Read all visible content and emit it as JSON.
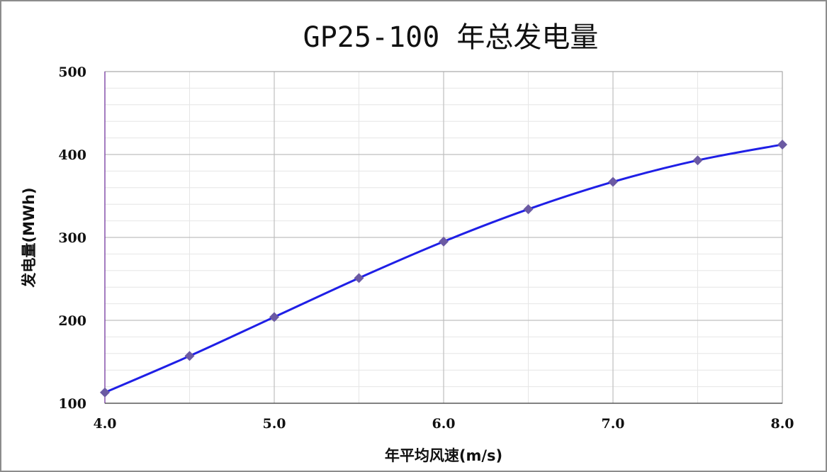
{
  "chart_data": {
    "type": "line",
    "title": "GP25-100 年总发电量",
    "xlabel": "年平均风速(m/s)",
    "ylabel": "发电量(MWh)",
    "xlim": [
      4.0,
      8.0
    ],
    "ylim": [
      100,
      500
    ],
    "x_ticks": [
      "4.0",
      "5.0",
      "6.0",
      "7.0",
      "8.0"
    ],
    "y_ticks": [
      "100",
      "200",
      "300",
      "400",
      "500"
    ],
    "grid": true,
    "legend": "none",
    "series": [
      {
        "x": [
          4.0,
          4.5,
          5.0,
          5.5,
          6.0,
          6.5,
          7.0,
          7.5,
          8.0
        ],
        "values": [
          113,
          157,
          204,
          251,
          295,
          334,
          367,
          393,
          412
        ],
        "color": "#1f1fe6",
        "marker_color": "#6b5aa3",
        "marker": "diamond"
      }
    ]
  }
}
